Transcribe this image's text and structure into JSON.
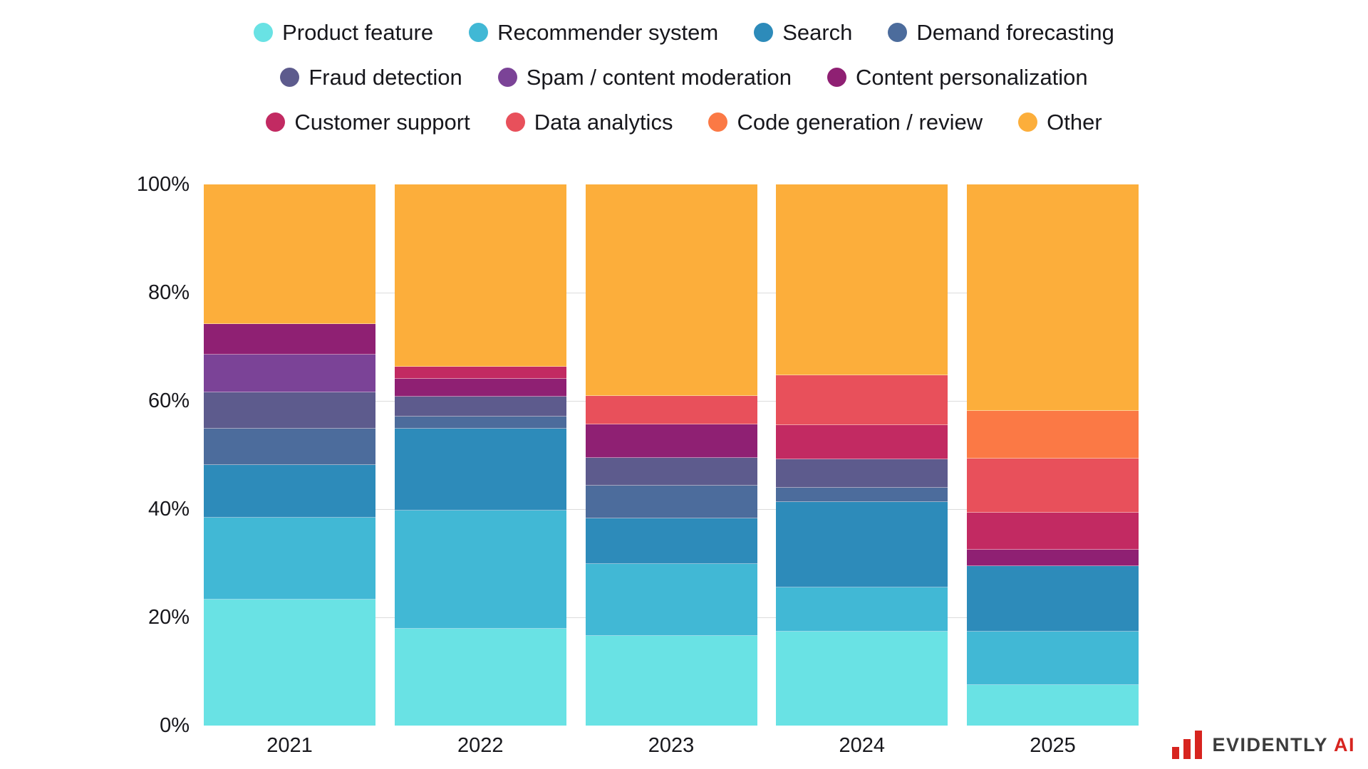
{
  "chart_data": {
    "type": "bar",
    "stacked": true,
    "unit": "%",
    "title": "",
    "categories": [
      "2021",
      "2022",
      "2023",
      "2024",
      "2025"
    ],
    "series": [
      {
        "name": "Product feature",
        "color": "#69E2E4",
        "values": [
          23.3,
          17.9,
          16.6,
          17.4,
          7.5
        ]
      },
      {
        "name": "Recommender system",
        "color": "#41B8D5",
        "values": [
          15.1,
          21.8,
          13.3,
          8.1,
          9.9
        ]
      },
      {
        "name": "Search",
        "color": "#2D8BBA",
        "values": [
          9.8,
          15.2,
          8.4,
          15.8,
          12.1
        ]
      },
      {
        "name": "Demand forecasting",
        "color": "#4C6C9C",
        "values": [
          6.7,
          2.2,
          6.0,
          2.6,
          0
        ]
      },
      {
        "name": "Fraud detection",
        "color": "#5D5B8D",
        "values": [
          6.7,
          3.7,
          5.2,
          5.3,
          0
        ]
      },
      {
        "name": "Spam / content moderation",
        "color": "#7B4397",
        "values": [
          7.0,
          0,
          0,
          0,
          0
        ]
      },
      {
        "name": "Content personalization",
        "color": "#8F2073",
        "values": [
          5.6,
          3.3,
          6.2,
          0,
          3.0
        ]
      },
      {
        "name": "Customer support",
        "color": "#C22A62",
        "values": [
          0,
          2.2,
          0,
          6.3,
          6.8
        ]
      },
      {
        "name": "Data analytics",
        "color": "#E8505B",
        "values": [
          0,
          0,
          5.2,
          9.2,
          10.0
        ]
      },
      {
        "name": "Code generation / review",
        "color": "#FB7945",
        "values": [
          0,
          0,
          0,
          0,
          8.9
        ]
      },
      {
        "name": "Other",
        "color": "#FCAE3B",
        "values": [
          25.8,
          33.7,
          39.1,
          35.3,
          41.8
        ]
      }
    ],
    "y_axis": {
      "ylim": [
        0,
        100
      ],
      "tick_labels": [
        "100%",
        "80%",
        "60%",
        "40%",
        "20%",
        "0%"
      ],
      "tick_values": [
        100,
        80,
        60,
        40,
        20,
        0
      ],
      "grid": true,
      "grid_values": [
        80,
        60,
        40,
        20
      ]
    },
    "legend_position": "top",
    "legend_rows": [
      [
        0,
        1,
        2,
        3
      ],
      [
        4,
        5,
        6
      ],
      [
        7,
        8,
        9,
        10
      ]
    ]
  },
  "branding": {
    "name_primary": "EVIDENTLY",
    "name_accent": "AI",
    "logo_color": "#D7241F",
    "text_color": "#3C3C3C"
  }
}
